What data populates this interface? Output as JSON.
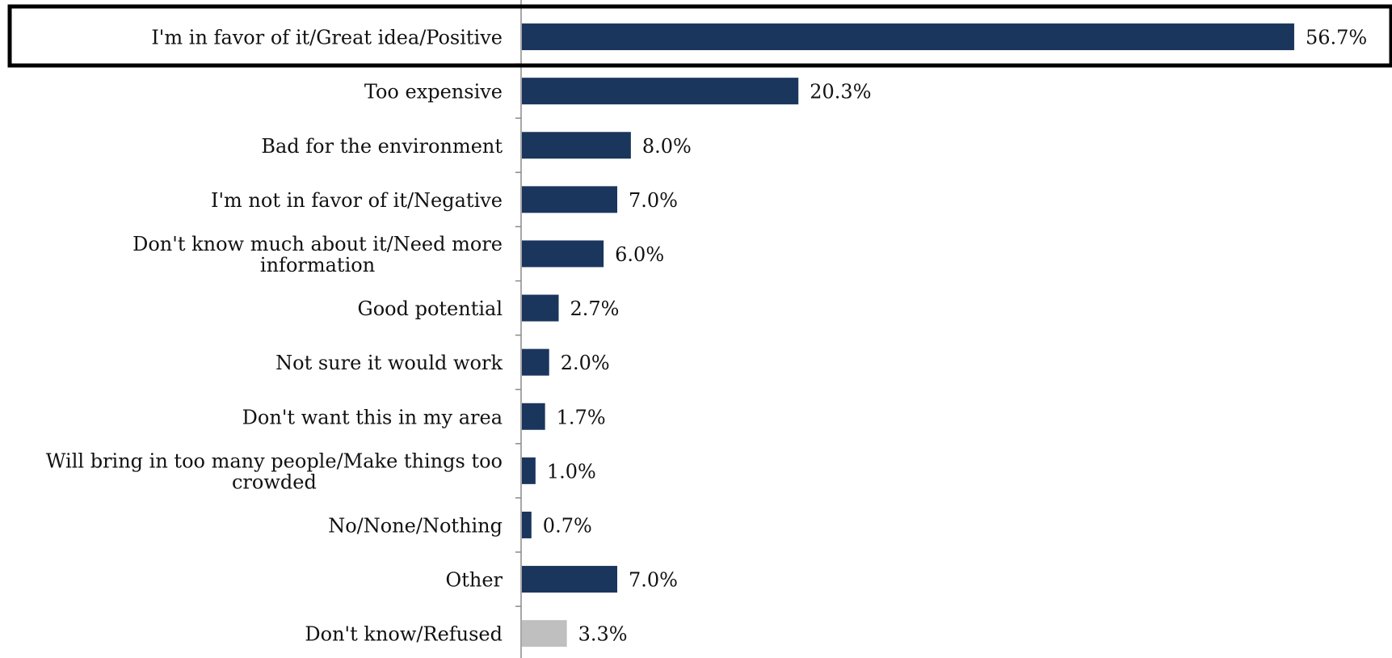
{
  "chart_data": {
    "type": "bar",
    "orientation": "horizontal",
    "categories": [
      "I'm in favor of it/Great idea/Positive",
      "Too expensive",
      "Bad for the environment",
      "I'm not in favor of it/Negative",
      "Don't know much about it/Need more information",
      "Good potential",
      "Not sure it would work",
      "Don't want this in my area",
      "Will bring in too many people/Make things too crowded",
      "No/None/Nothing",
      "Other",
      "Don't know/Refused"
    ],
    "values": [
      56.7,
      20.3,
      8.0,
      7.0,
      6.0,
      2.7,
      2.0,
      1.7,
      1.0,
      0.7,
      7.0,
      3.3
    ],
    "value_labels": [
      "56.7%",
      "20.3%",
      "8.0%",
      "7.0%",
      "6.0%",
      "2.7%",
      "2.0%",
      "1.7%",
      "1.0%",
      "0.7%",
      "7.0%",
      "3.3%"
    ],
    "bar_colors": [
      "#1b365d",
      "#1b365d",
      "#1b365d",
      "#1b365d",
      "#1b365d",
      "#1b365d",
      "#1b365d",
      "#1b365d",
      "#1b365d",
      "#1b365d",
      "#1b365d",
      "#bfbfbf"
    ],
    "highlighted_category_index": 0,
    "xlim": [
      0,
      60
    ],
    "title": "",
    "xlabel": "",
    "ylabel": "",
    "grid": false,
    "legend": "none"
  }
}
